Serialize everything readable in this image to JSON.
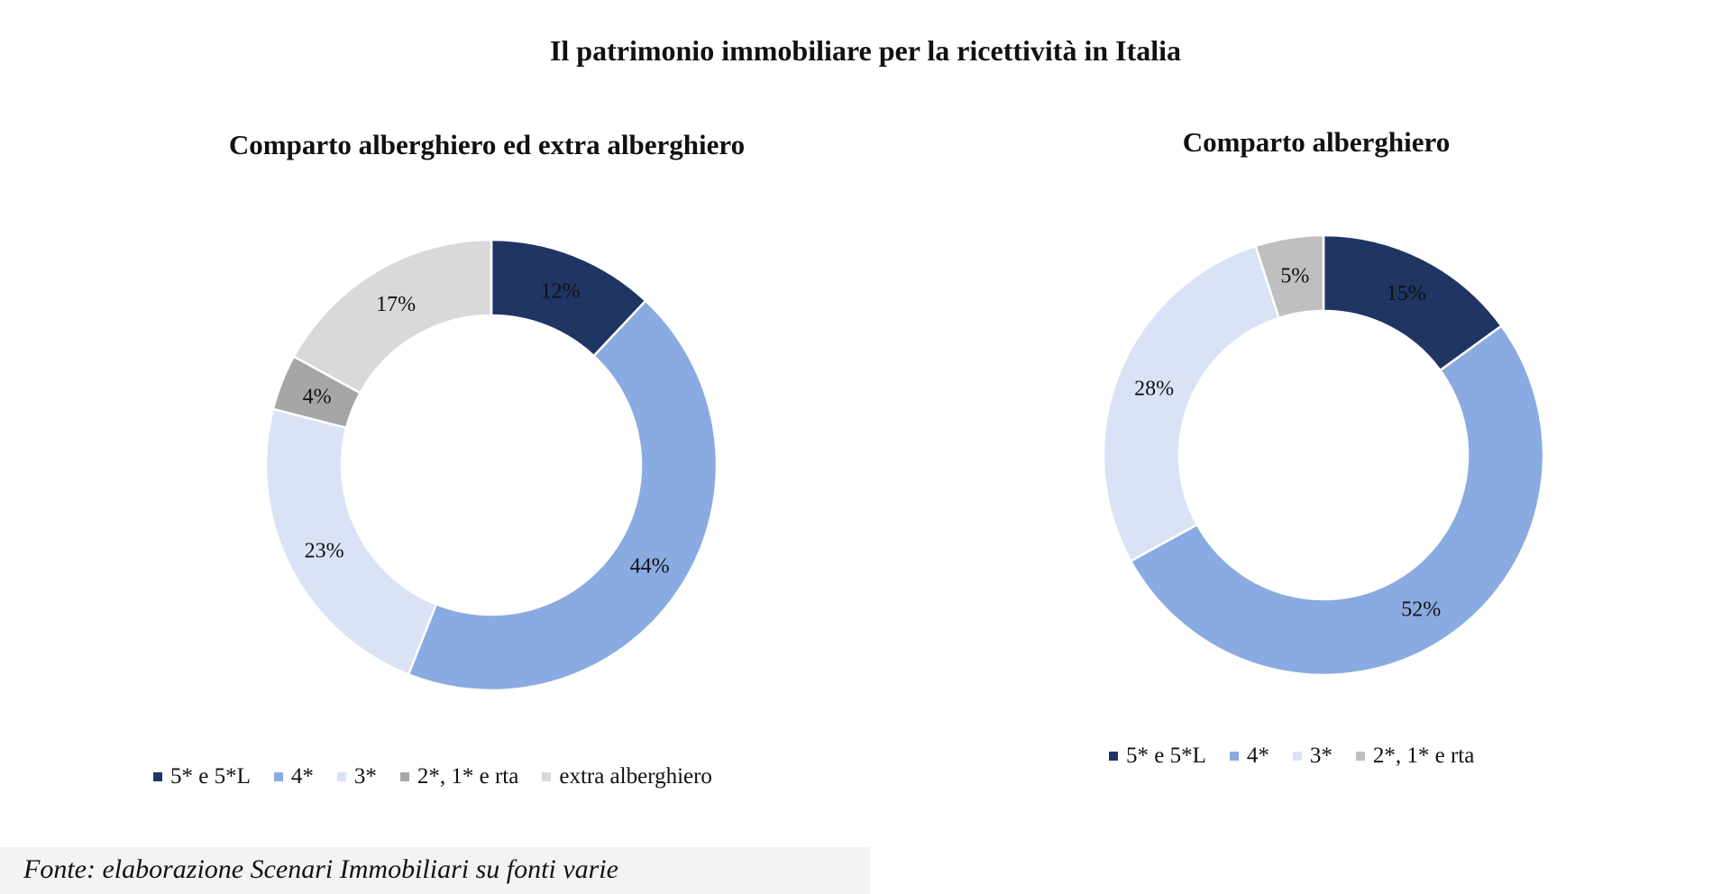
{
  "title": "Il patrimonio immobiliare per la ricettività in Italia",
  "source": "Fonte: elaborazione Scenari Immobiliari su fonti varie",
  "colors": {
    "five_star": "#1f3563",
    "four_star": "#8aabe1",
    "three_star": "#d9e3f5",
    "two_one_rta": "#a6a6a6",
    "two_one_rta_right": "#bfbfbf",
    "extra": "#d9d9d9"
  },
  "chart_data": [
    {
      "type": "pie",
      "subtype": "donut",
      "title": "Comparto  alberghiero  ed extra alberghiero",
      "categories": [
        "5* e 5*L",
        "4*",
        "3*",
        "2*, 1* e rta",
        "extra alberghiero"
      ],
      "values": [
        12,
        44,
        23,
        4,
        17
      ],
      "labels": [
        "12%",
        "44%",
        "23%",
        "4%",
        "17%"
      ],
      "colors": [
        "#1f3563",
        "#8aabe1",
        "#d9e3f5",
        "#a6a6a6",
        "#d9d9d9"
      ],
      "legend_position": "bottom"
    },
    {
      "type": "pie",
      "subtype": "donut",
      "title": "Comparto  alberghiero",
      "categories": [
        "5* e 5*L",
        "4*",
        "3*",
        "2*, 1* e rta"
      ],
      "values": [
        15,
        52,
        28,
        5
      ],
      "labels": [
        "15%",
        "52%",
        "28%",
        "5%"
      ],
      "colors": [
        "#1f3563",
        "#8aabe1",
        "#d9e3f5",
        "#bfbfbf"
      ],
      "legend_position": "bottom"
    }
  ]
}
